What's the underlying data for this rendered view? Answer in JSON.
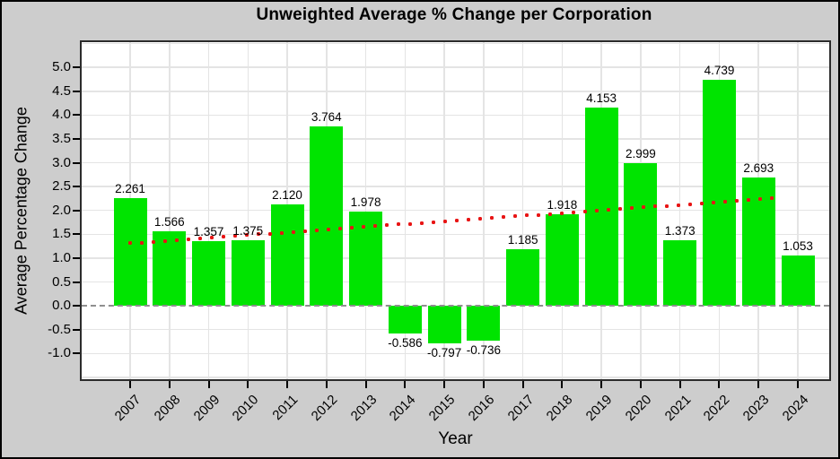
{
  "chart_data": {
    "type": "bar",
    "title": "Unweighted Average % Change per Corporation",
    "xlabel": "Year",
    "ylabel": "Average Percentage Change",
    "categories": [
      "2007",
      "2008",
      "2009",
      "2010",
      "2011",
      "2012",
      "2013",
      "2014",
      "2015",
      "2016",
      "2017",
      "2018",
      "2019",
      "2020",
      "2021",
      "2022",
      "2023",
      "2024"
    ],
    "values": [
      2.261,
      1.566,
      1.357,
      1.375,
      2.12,
      3.764,
      1.978,
      -0.586,
      -0.797,
      -0.736,
      1.185,
      1.918,
      4.153,
      2.999,
      1.373,
      4.739,
      2.693,
      1.053
    ],
    "bar_labels": [
      "2.261",
      "1.566",
      "1.357",
      "1.375",
      "2.120",
      "3.764",
      "1.978",
      "-0.586",
      "-0.797",
      "-0.736",
      "1.185",
      "1.918",
      "4.153",
      "2.999",
      "1.373",
      "4.739",
      "2.693",
      "1.053"
    ],
    "ytick_labels": [
      "5.0",
      "4.5",
      "4.0",
      "3.5",
      "3.0",
      "2.5",
      "2.0",
      "1.5",
      "1.0",
      "0.5",
      "0.0",
      "-0.5",
      "-1.0"
    ],
    "ylim": [
      -1.54,
      5.53
    ],
    "grid": true,
    "legend": "none",
    "trend": {
      "type": "linear",
      "style": "dotted",
      "start_value": 1.31,
      "end_value": 2.29
    },
    "colors": {
      "bar": "#00e400",
      "trend": "#e81414",
      "grid": "#e4e4e4",
      "zero_line": "#8f8f8f",
      "plot_background": "#ffffff",
      "page_background": "#cdcdcd",
      "plot_border": "#2b2b2b",
      "text": "#000000"
    }
  }
}
